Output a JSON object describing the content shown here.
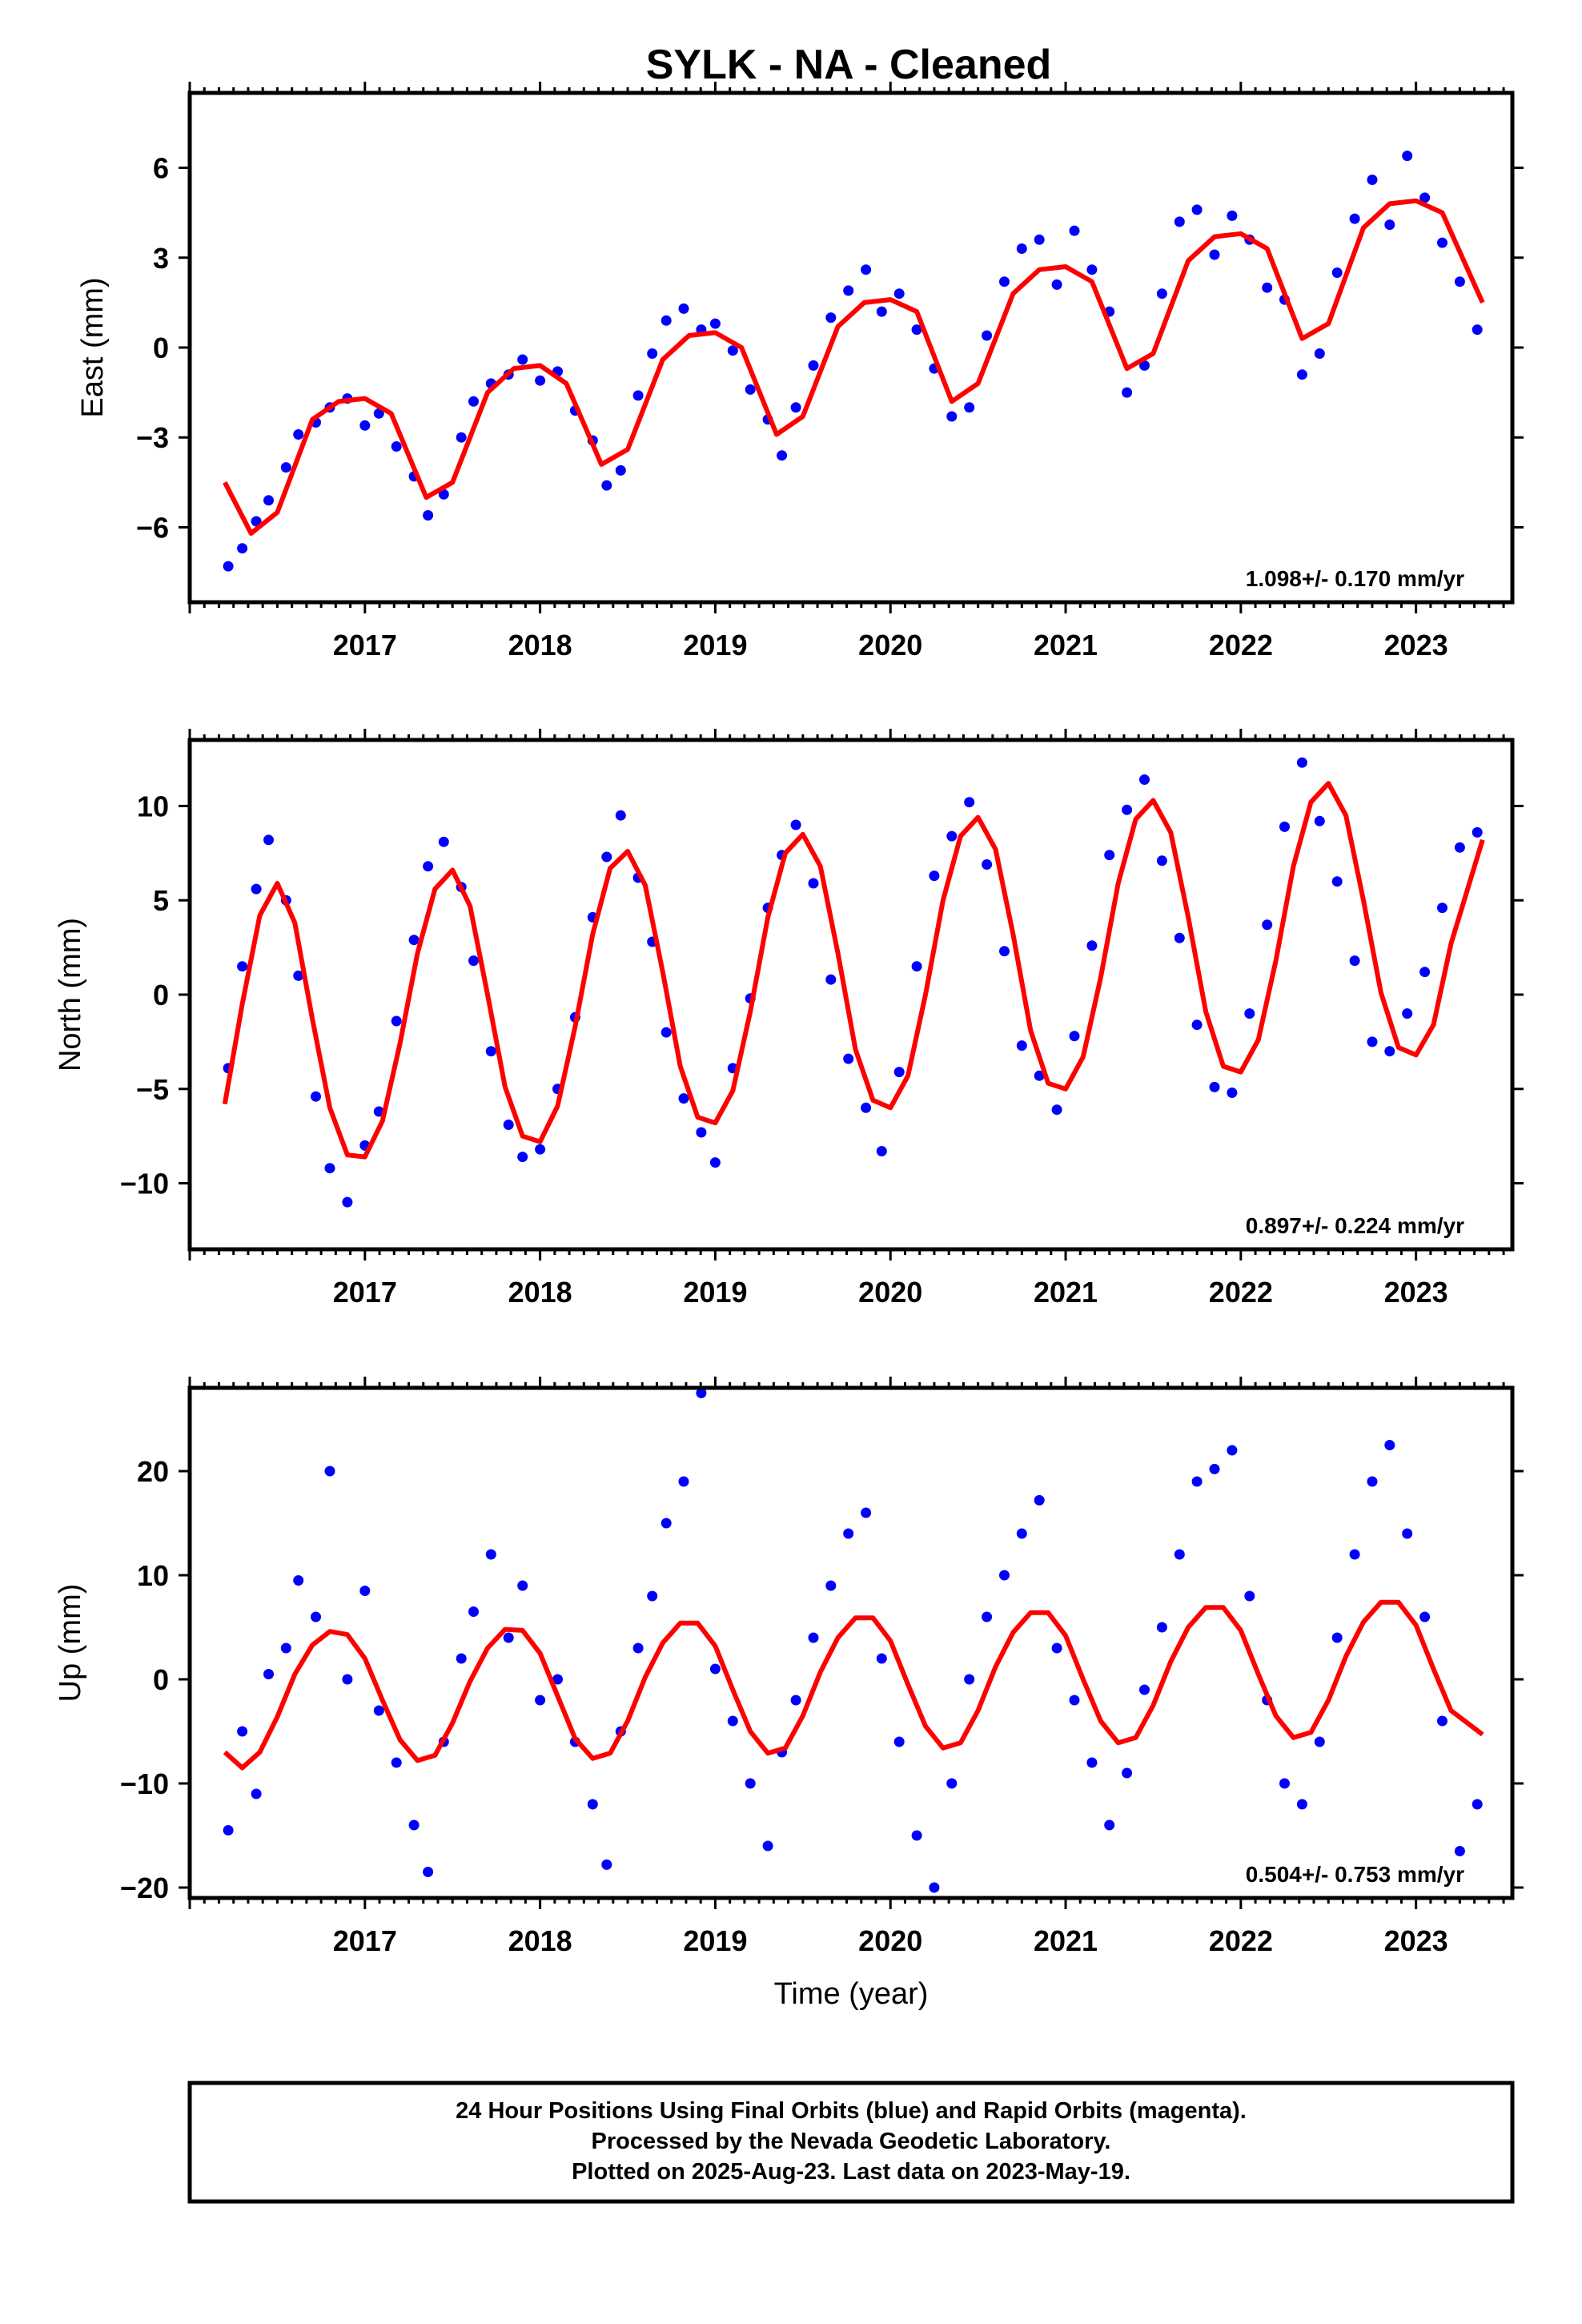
{
  "title": "SYLK  - NA - Cleaned",
  "colors": {
    "points": "#0000ff",
    "fit": "#ff0000",
    "frame": "#000000"
  },
  "chart_data": [
    {
      "id": "east",
      "type": "scatter",
      "ylabel": "East (mm)",
      "xlabel": "",
      "xlim": [
        2016.0,
        2023.55
      ],
      "ylim": [
        -8.5,
        8.5
      ],
      "xticks": [
        2017,
        2018,
        2019,
        2020,
        2021,
        2022,
        2023
      ],
      "yticks": [
        -6,
        -3,
        0,
        3,
        6
      ],
      "rate_label": "1.098+/- 0.170 mm/yr",
      "fit": {
        "name": "",
        "x": [
          2016.2,
          2016.35,
          2016.5,
          2016.7,
          2016.85,
          2017.0,
          2017.15,
          2017.35,
          2017.5,
          2017.7,
          2017.85,
          2018.0,
          2018.15,
          2018.35,
          2018.5,
          2018.7,
          2018.85,
          2019.0,
          2019.15,
          2019.35,
          2019.5,
          2019.7,
          2019.85,
          2020.0,
          2020.15,
          2020.35,
          2020.5,
          2020.7,
          2020.85,
          2021.0,
          2021.15,
          2021.35,
          2021.5,
          2021.7,
          2021.85,
          2022.0,
          2022.15,
          2022.35,
          2022.5,
          2022.7,
          2022.85,
          2023.0,
          2023.15,
          2023.38
        ],
        "y": [
          -4.5,
          -6.2,
          -5.5,
          -2.4,
          -1.8,
          -1.7,
          -2.2,
          -5.0,
          -4.5,
          -1.5,
          -0.7,
          -0.6,
          -1.2,
          -3.9,
          -3.4,
          -0.4,
          0.4,
          0.5,
          0.0,
          -2.9,
          -2.3,
          0.7,
          1.5,
          1.6,
          1.2,
          -1.8,
          -1.2,
          1.8,
          2.6,
          2.7,
          2.2,
          -0.7,
          -0.2,
          2.9,
          3.7,
          3.8,
          3.3,
          0.3,
          0.8,
          4.0,
          4.8,
          4.9,
          4.5,
          1.5
        ]
      },
      "series": [
        {
          "name": "",
          "x": [
            2016.22,
            2016.3,
            2016.38,
            2016.45,
            2016.55,
            2016.62,
            2016.72,
            2016.8,
            2016.9,
            2017.0,
            2017.08,
            2017.18,
            2017.28,
            2017.36,
            2017.45,
            2017.55,
            2017.62,
            2017.72,
            2017.82,
            2017.9,
            2018.0,
            2018.1,
            2018.2,
            2018.3,
            2018.38,
            2018.46,
            2018.56,
            2018.64,
            2018.72,
            2018.82,
            2018.92,
            2019.0,
            2019.1,
            2019.2,
            2019.3,
            2019.38,
            2019.46,
            2019.56,
            2019.66,
            2019.76,
            2019.86,
            2019.95,
            2020.05,
            2020.15,
            2020.25,
            2020.35,
            2020.45,
            2020.55,
            2020.65,
            2020.75,
            2020.85,
            2020.95,
            2021.05,
            2021.15,
            2021.25,
            2021.35,
            2021.45,
            2021.55,
            2021.65,
            2021.75,
            2021.85,
            2021.95,
            2022.05,
            2022.15,
            2022.25,
            2022.35,
            2022.45,
            2022.55,
            2022.65,
            2022.75,
            2022.85,
            2022.95,
            2023.05,
            2023.15,
            2023.25,
            2023.35
          ],
          "y": [
            -7.3,
            -6.7,
            -5.8,
            -5.1,
            -4.0,
            -2.9,
            -2.5,
            -2.0,
            -1.7,
            -2.6,
            -2.2,
            -3.3,
            -4.3,
            -5.6,
            -4.9,
            -3.0,
            -1.8,
            -1.2,
            -0.9,
            -0.4,
            -1.1,
            -0.8,
            -2.1,
            -3.1,
            -4.6,
            -4.1,
            -1.6,
            -0.2,
            0.9,
            1.3,
            0.6,
            0.8,
            -0.1,
            -1.4,
            -2.4,
            -3.6,
            -2.0,
            -0.6,
            1.0,
            1.9,
            2.6,
            1.2,
            1.8,
            0.6,
            -0.7,
            -2.3,
            -2.0,
            0.4,
            2.2,
            3.3,
            3.6,
            2.1,
            3.9,
            2.6,
            1.2,
            -1.5,
            -0.6,
            1.8,
            4.2,
            4.6,
            3.1,
            4.4,
            3.6,
            2.0,
            1.6,
            -0.9,
            -0.2,
            2.5,
            4.3,
            5.6,
            4.1,
            6.4,
            5.0,
            3.5,
            2.2,
            0.6
          ]
        }
      ]
    },
    {
      "id": "north",
      "type": "scatter",
      "ylabel": "North (mm)",
      "xlabel": "",
      "xlim": [
        2016.0,
        2023.55
      ],
      "ylim": [
        -13.5,
        13.5
      ],
      "xticks": [
        2017,
        2018,
        2019,
        2020,
        2021,
        2022,
        2023
      ],
      "yticks": [
        -10,
        -5,
        0,
        5,
        10
      ],
      "rate_label": "0.897+/- 0.224 mm/yr",
      "fit": {
        "name": "",
        "x": [
          2016.2,
          2016.3,
          2016.4,
          2016.5,
          2016.6,
          2016.7,
          2016.8,
          2016.9,
          2017.0,
          2017.1,
          2017.2,
          2017.3,
          2017.4,
          2017.5,
          2017.6,
          2017.7,
          2017.8,
          2017.9,
          2018.0,
          2018.1,
          2018.2,
          2018.3,
          2018.4,
          2018.5,
          2018.6,
          2018.7,
          2018.8,
          2018.9,
          2019.0,
          2019.1,
          2019.2,
          2019.3,
          2019.4,
          2019.5,
          2019.6,
          2019.7,
          2019.8,
          2019.9,
          2020.0,
          2020.1,
          2020.2,
          2020.3,
          2020.4,
          2020.5,
          2020.6,
          2020.7,
          2020.8,
          2020.9,
          2021.0,
          2021.1,
          2021.2,
          2021.3,
          2021.4,
          2021.5,
          2021.6,
          2021.7,
          2021.8,
          2021.9,
          2022.0,
          2022.1,
          2022.2,
          2022.3,
          2022.4,
          2022.5,
          2022.6,
          2022.7,
          2022.8,
          2022.9,
          2023.0,
          2023.1,
          2023.2,
          2023.38
        ],
        "y": [
          -5.8,
          -0.5,
          4.2,
          5.9,
          3.8,
          -1.3,
          -6.0,
          -8.5,
          -8.6,
          -6.7,
          -2.6,
          2.2,
          5.6,
          6.6,
          4.7,
          0.0,
          -4.9,
          -7.5,
          -7.8,
          -5.9,
          -1.7,
          3.2,
          6.7,
          7.6,
          5.8,
          1.2,
          -3.8,
          -6.5,
          -6.8,
          -5.1,
          -0.9,
          4.1,
          7.5,
          8.5,
          6.8,
          2.2,
          -2.9,
          -5.6,
          -6.0,
          -4.3,
          0.0,
          5.0,
          8.4,
          9.4,
          7.7,
          3.2,
          -1.9,
          -4.7,
          -5.0,
          -3.3,
          0.9,
          5.9,
          9.3,
          10.3,
          8.6,
          4.1,
          -0.9,
          -3.8,
          -4.1,
          -2.4,
          1.8,
          6.8,
          10.2,
          11.2,
          9.5,
          5.0,
          0.1,
          -2.8,
          -3.2,
          -1.6,
          2.7,
          8.2
        ]
      },
      "series": [
        {
          "name": "",
          "x": [
            2016.22,
            2016.3,
            2016.38,
            2016.45,
            2016.55,
            2016.62,
            2016.72,
            2016.8,
            2016.9,
            2017.0,
            2017.08,
            2017.18,
            2017.28,
            2017.36,
            2017.45,
            2017.55,
            2017.62,
            2017.72,
            2017.82,
            2017.9,
            2018.0,
            2018.1,
            2018.2,
            2018.3,
            2018.38,
            2018.46,
            2018.56,
            2018.64,
            2018.72,
            2018.82,
            2018.92,
            2019.0,
            2019.1,
            2019.2,
            2019.3,
            2019.38,
            2019.46,
            2019.56,
            2019.66,
            2019.76,
            2019.86,
            2019.95,
            2020.05,
            2020.15,
            2020.25,
            2020.35,
            2020.45,
            2020.55,
            2020.65,
            2020.75,
            2020.85,
            2020.95,
            2021.05,
            2021.15,
            2021.25,
            2021.35,
            2021.45,
            2021.55,
            2021.65,
            2021.75,
            2021.85,
            2021.95,
            2022.05,
            2022.15,
            2022.25,
            2022.35,
            2022.45,
            2022.55,
            2022.65,
            2022.75,
            2022.85,
            2022.95,
            2023.05,
            2023.15,
            2023.25,
            2023.35
          ],
          "y": [
            -3.9,
            1.5,
            5.6,
            8.2,
            5.0,
            1.0,
            -5.4,
            -9.2,
            -11.0,
            -8.0,
            -6.2,
            -1.4,
            2.9,
            6.8,
            8.1,
            5.7,
            1.8,
            -3.0,
            -6.9,
            -8.6,
            -8.2,
            -5.0,
            -1.2,
            4.1,
            7.3,
            9.5,
            6.2,
            2.8,
            -2.0,
            -5.5,
            -7.3,
            -8.9,
            -3.9,
            -0.2,
            4.6,
            7.4,
            9.0,
            5.9,
            0.8,
            -3.4,
            -6.0,
            -8.3,
            -4.1,
            1.5,
            6.3,
            8.4,
            10.2,
            6.9,
            2.3,
            -2.7,
            -4.3,
            -6.1,
            -2.2,
            2.6,
            7.4,
            9.8,
            11.4,
            7.1,
            3.0,
            -1.6,
            -4.9,
            -5.2,
            -1.0,
            3.7,
            8.9,
            12.3,
            9.2,
            6.0,
            1.8,
            -2.5,
            -3.0,
            -1.0,
            1.2,
            4.6,
            7.8,
            8.6
          ]
        }
      ]
    },
    {
      "id": "up",
      "type": "scatter",
      "ylabel": "Up (mm)",
      "xlabel": "Time (year)",
      "xlim": [
        2016.0,
        2023.55
      ],
      "ylim": [
        -21,
        28
      ],
      "xticks": [
        2017,
        2018,
        2019,
        2020,
        2021,
        2022,
        2023
      ],
      "yticks": [
        -20,
        -10,
        0,
        10,
        20
      ],
      "rate_label": "0.504+/- 0.753 mm/yr",
      "fit": {
        "name": "",
        "x": [
          2016.2,
          2016.3,
          2016.4,
          2016.5,
          2016.6,
          2016.7,
          2016.8,
          2016.9,
          2017.0,
          2017.1,
          2017.2,
          2017.3,
          2017.4,
          2017.5,
          2017.6,
          2017.7,
          2017.8,
          2017.9,
          2018.0,
          2018.1,
          2018.2,
          2018.3,
          2018.4,
          2018.5,
          2018.6,
          2018.7,
          2018.8,
          2018.9,
          2019.0,
          2019.1,
          2019.2,
          2019.3,
          2019.4,
          2019.5,
          2019.6,
          2019.7,
          2019.8,
          2019.9,
          2020.0,
          2020.1,
          2020.2,
          2020.3,
          2020.4,
          2020.5,
          2020.6,
          2020.7,
          2020.8,
          2020.9,
          2021.0,
          2021.1,
          2021.2,
          2021.3,
          2021.4,
          2021.5,
          2021.6,
          2021.7,
          2021.8,
          2021.9,
          2022.0,
          2022.1,
          2022.2,
          2022.3,
          2022.4,
          2022.5,
          2022.6,
          2022.7,
          2022.8,
          2022.9,
          2023.0,
          2023.1,
          2023.2,
          2023.38
        ],
        "y": [
          -7.0,
          -8.5,
          -7.0,
          -3.6,
          0.5,
          3.3,
          4.6,
          4.3,
          2.0,
          -2.0,
          -5.8,
          -7.8,
          -7.3,
          -4.2,
          -0.2,
          3.0,
          4.8,
          4.7,
          2.5,
          -1.6,
          -5.7,
          -7.6,
          -7.1,
          -4.0,
          0.2,
          3.5,
          5.4,
          5.4,
          3.2,
          -1.0,
          -5.0,
          -7.1,
          -6.6,
          -3.5,
          0.7,
          4.0,
          5.9,
          5.9,
          3.7,
          -0.5,
          -4.5,
          -6.6,
          -6.1,
          -3.0,
          1.2,
          4.5,
          6.4,
          6.4,
          4.2,
          0.0,
          -4.0,
          -6.1,
          -5.6,
          -2.5,
          1.7,
          5.0,
          6.9,
          6.9,
          4.7,
          0.5,
          -3.5,
          -5.6,
          -5.1,
          -2.0,
          2.2,
          5.5,
          7.4,
          7.4,
          5.2,
          1.0,
          -3.0,
          -5.3
        ]
      },
      "series": [
        {
          "name": "",
          "x": [
            2016.22,
            2016.3,
            2016.38,
            2016.45,
            2016.55,
            2016.62,
            2016.72,
            2016.8,
            2016.9,
            2017.0,
            2017.08,
            2017.18,
            2017.28,
            2017.36,
            2017.45,
            2017.55,
            2017.62,
            2017.72,
            2017.82,
            2017.9,
            2018.0,
            2018.1,
            2018.2,
            2018.3,
            2018.38,
            2018.46,
            2018.56,
            2018.64,
            2018.72,
            2018.82,
            2018.92,
            2019.0,
            2019.1,
            2019.2,
            2019.3,
            2019.38,
            2019.46,
            2019.56,
            2019.66,
            2019.76,
            2019.86,
            2019.95,
            2020.05,
            2020.15,
            2020.25,
            2020.35,
            2020.45,
            2020.55,
            2020.65,
            2020.75,
            2020.85,
            2020.95,
            2021.05,
            2021.15,
            2021.25,
            2021.35,
            2021.45,
            2021.55,
            2021.65,
            2021.75,
            2021.85,
            2021.95,
            2022.05,
            2022.15,
            2022.25,
            2022.35,
            2022.45,
            2022.55,
            2022.65,
            2022.75,
            2022.85,
            2022.95,
            2023.05,
            2023.15,
            2023.25,
            2023.35
          ],
          "y": [
            -14.5,
            -5.0,
            -11.0,
            0.5,
            3.0,
            9.5,
            6.0,
            20.0,
            0.0,
            8.5,
            -3.0,
            -8.0,
            -14.0,
            -18.5,
            -6.0,
            2.0,
            6.5,
            12.0,
            4.0,
            9.0,
            -2.0,
            0.0,
            -6.0,
            -12.0,
            -17.8,
            -5.0,
            3.0,
            8.0,
            15.0,
            19.0,
            27.5,
            1.0,
            -4.0,
            -10.0,
            -16.0,
            -7.0,
            -2.0,
            4.0,
            9.0,
            14.0,
            16.0,
            2.0,
            -6.0,
            -15.0,
            -20.0,
            -10.0,
            0.0,
            6.0,
            10.0,
            14.0,
            17.2,
            3.0,
            -2.0,
            -8.0,
            -14.0,
            -9.0,
            -1.0,
            5.0,
            12.0,
            19.0,
            20.2,
            22.0,
            8.0,
            -2.0,
            -10.0,
            -12.0,
            -6.0,
            4.0,
            12.0,
            19.0,
            22.5,
            14.0,
            6.0,
            -4.0,
            -16.5,
            -12.0
          ]
        }
      ]
    }
  ],
  "footer": {
    "line1": "24 Hour Positions Using Final Orbits (blue) and Rapid Orbits (magenta).",
    "line2": "Processed by the Nevada Geodetic Laboratory.",
    "line3": "Plotted on 2025-Aug-23. Last data on 2023-May-19."
  }
}
